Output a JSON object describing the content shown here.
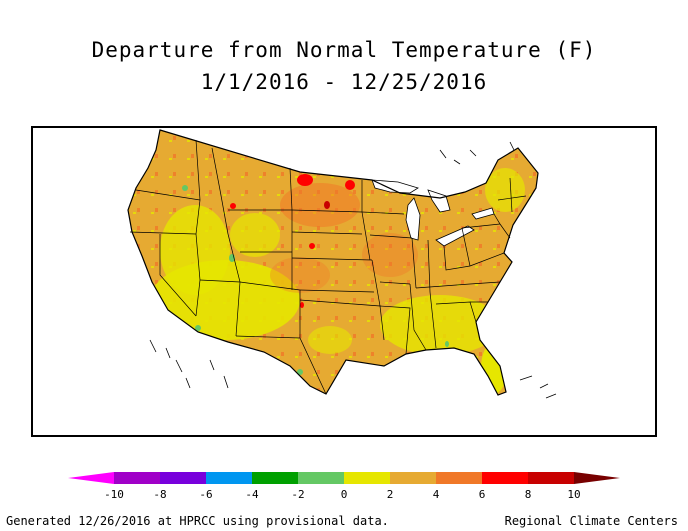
{
  "title": "Departure from Normal Temperature (F)",
  "date_range": "1/1/2016 - 12/25/2016",
  "legend": {
    "ticks": [
      "-10",
      "-8",
      "-6",
      "-4",
      "-2",
      "0",
      "2",
      "4",
      "6",
      "8",
      "10"
    ],
    "colors": [
      "#ff00ff",
      "#a000c8",
      "#7800dc",
      "#0096f0",
      "#00a000",
      "#64c864",
      "#e6e600",
      "#e6aa32",
      "#f07828",
      "#ff0000",
      "#c80000",
      "#780000"
    ]
  },
  "map": {
    "region": "Contiguous United States",
    "dominant_colors": [
      "#e6aa32",
      "#e6e600",
      "#f07828"
    ]
  },
  "footer": {
    "left": "Generated 12/26/2016 at HPRCC using provisional data.",
    "right": "Regional Climate Centers"
  }
}
